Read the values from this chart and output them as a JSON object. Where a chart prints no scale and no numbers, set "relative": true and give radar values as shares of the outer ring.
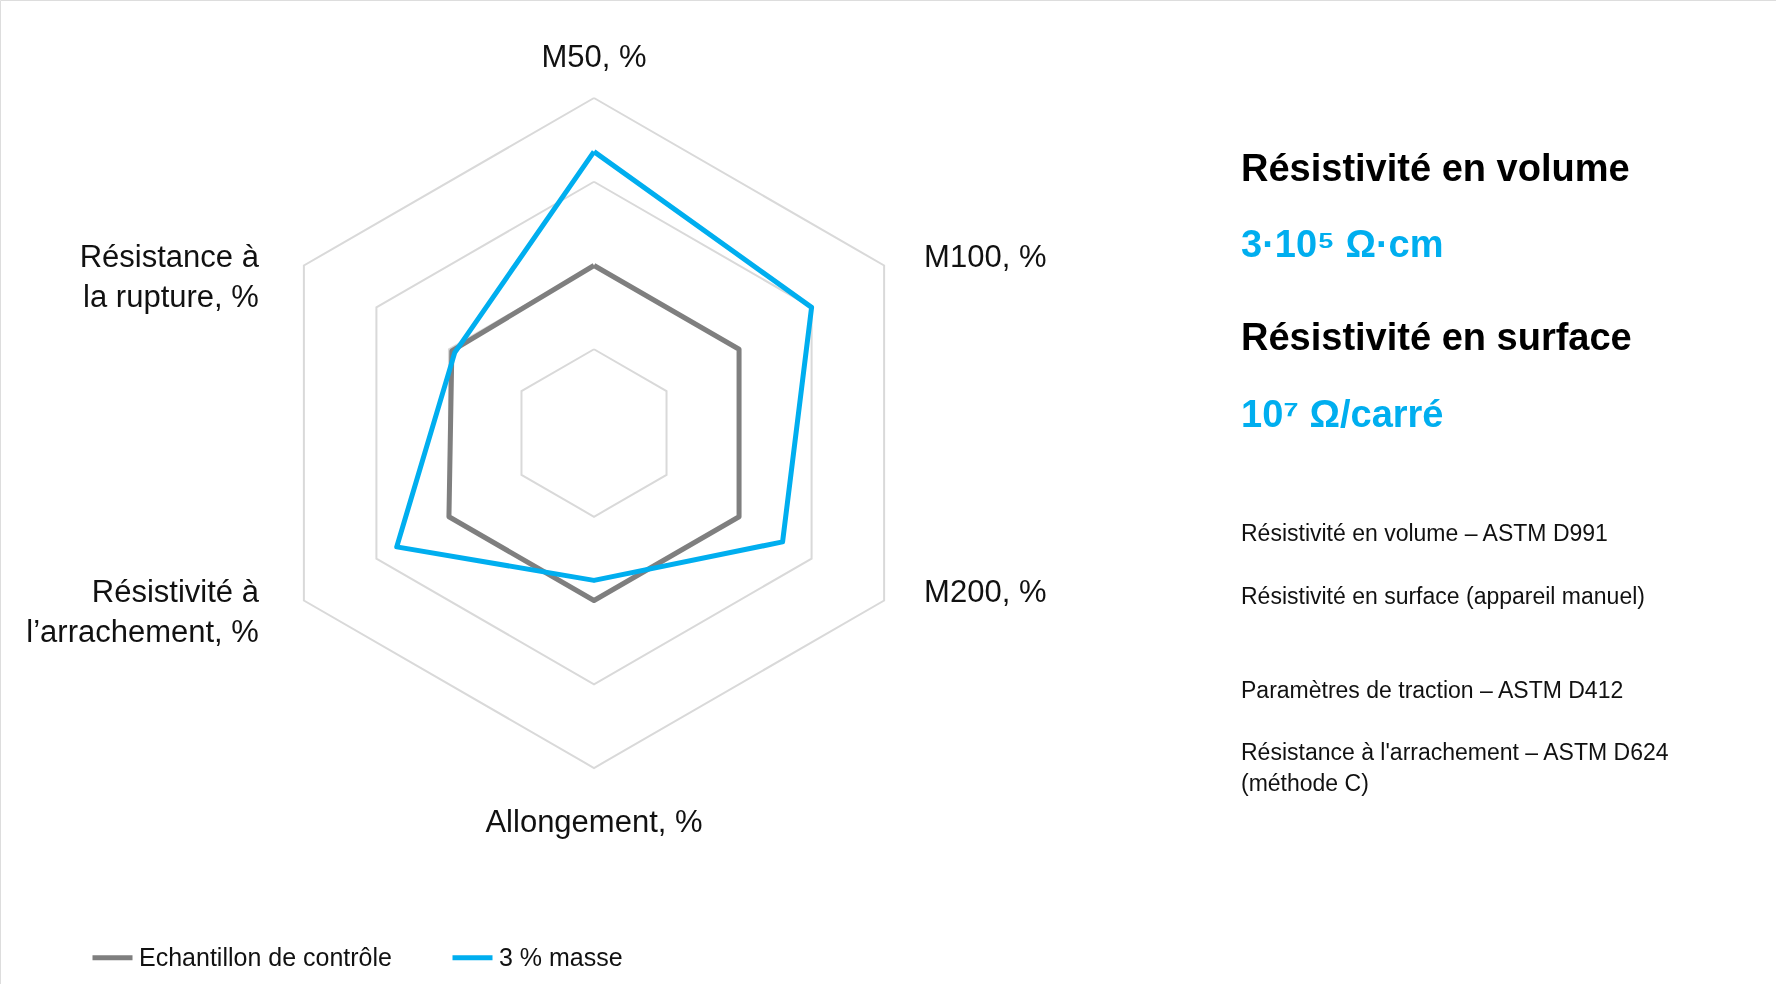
{
  "chart_data": {
    "type": "radar",
    "relative": true,
    "grid": true,
    "legend": "bottom left",
    "categories": [
      "M50, %",
      "M100, %",
      "M200, %",
      "Allongement, %",
      "Résistivité à l’arrachement, %",
      "Résistance à la rupture, %"
    ],
    "series": [
      {
        "name": "Echantillon de contrôle",
        "color": "#7f7f7f",
        "values": [
          0.5,
          0.5,
          0.5,
          0.5,
          0.5,
          0.49
        ]
      },
      {
        "name": "3 % masse",
        "color": "#00aeef",
        "values": [
          0.84,
          0.75,
          0.65,
          0.44,
          0.68,
          0.48
        ]
      }
    ],
    "annotations": [
      "Résistivité en volume",
      "3·10⁵ Ω·cm",
      "Résistivité en surface",
      "10⁷ Ω/carré",
      "Résistivité en volume – ASTM D991",
      "Résistivité en surface (appareil manuel)",
      "Paramètres de traction – ASTM D412",
      "Résistance à l'arrachement – ASTM D624 (méthode C)"
    ]
  }
}
